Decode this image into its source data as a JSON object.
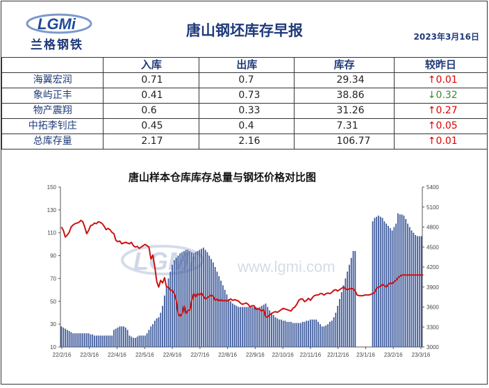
{
  "header": {
    "logo_text": "兰格钢铁",
    "logo_mark": "LGMi",
    "title": "唐山钢坯库存早报",
    "date": "2023年3月16日"
  },
  "table": {
    "columns": [
      "",
      "入库",
      "出库",
      "库存",
      "较昨日"
    ],
    "rows": [
      {
        "name": "海翼宏润",
        "in": "0.71",
        "out": "0.7",
        "stock": "29.34",
        "dir": "up",
        "arrow": "↑",
        "chg": "0.01"
      },
      {
        "name": "象屿正丰",
        "in": "0.41",
        "out": "0.73",
        "stock": "38.86",
        "dir": "down",
        "arrow": "↓",
        "chg": "0.32"
      },
      {
        "name": "物产震翔",
        "in": "0.6",
        "out": "0.33",
        "stock": "31.26",
        "dir": "up",
        "arrow": "↑",
        "chg": "0.27"
      },
      {
        "name": "中拓李钊庄",
        "in": "0.45",
        "out": "0.4",
        "stock": "7.31",
        "dir": "up",
        "arrow": "↑",
        "chg": "0.05"
      },
      {
        "name": "总库存量",
        "in": "2.17",
        "out": "2.16",
        "stock": "106.77",
        "dir": "up",
        "arrow": "↑",
        "chg": "0.01"
      }
    ]
  },
  "chart_data": {
    "type": "bar",
    "title": "唐山样本仓库库存总量与钢坯价格对比图",
    "watermark": "www.lgmi.com",
    "watermark_logo": "LGMi",
    "ylim_left": [
      10,
      150
    ],
    "yticks_left": [
      "10",
      "30",
      "50",
      "70",
      "90",
      "110",
      "130",
      "150"
    ],
    "ylim_right": [
      3000,
      5400
    ],
    "yticks_right": [
      "3000",
      "3300",
      "3600",
      "3900",
      "4200",
      "4500",
      "4800",
      "5100",
      "5400"
    ],
    "xticks": [
      "22/2/16",
      "22/3/16",
      "22/4/16",
      "22/5/16",
      "22/6/16",
      "22/7/16",
      "22/8/16",
      "22/9/16",
      "22/10/16",
      "22/11/16",
      "22/12/16",
      "23/1/16",
      "23/2/16",
      "23/3/16"
    ],
    "colors": {
      "bars": "#3d5a9c",
      "line": "#cc1111",
      "axis": "#555555"
    },
    "series": [
      {
        "kind": "bar",
        "values": [
          28,
          27,
          26,
          25,
          24,
          23,
          22,
          22,
          22,
          22,
          22,
          22,
          22,
          22,
          22,
          21,
          21,
          20,
          20,
          20,
          20,
          20,
          20,
          20,
          20,
          20,
          20,
          25,
          26,
          27,
          28,
          28,
          28,
          27,
          25,
          20,
          19,
          18,
          18,
          19,
          20,
          20,
          20,
          20,
          22,
          25,
          28,
          30,
          33,
          35,
          36,
          40,
          46,
          55,
          62,
          70,
          76,
          82,
          86,
          88,
          90,
          92,
          93,
          94,
          95,
          95,
          94,
          93,
          92,
          93,
          94,
          95,
          96,
          97,
          95,
          93,
          90,
          87,
          84,
          80,
          76,
          72,
          68,
          64,
          60,
          56,
          52,
          50,
          48,
          47,
          46,
          45,
          45,
          45,
          45,
          45,
          45,
          45,
          45,
          45,
          45,
          44,
          45,
          46,
          47,
          48,
          45,
          42,
          40,
          38,
          36,
          35,
          34,
          34,
          33,
          33,
          32,
          32,
          32,
          31,
          31,
          31,
          31,
          31,
          32,
          32,
          33,
          33,
          34,
          34,
          34,
          34,
          32,
          30,
          28,
          28,
          29,
          30,
          32,
          33,
          36,
          40,
          46,
          52,
          58,
          64,
          70,
          76,
          82,
          88,
          94,
          94,
          10,
          10,
          10,
          10,
          10,
          10,
          10,
          10,
          120,
          123,
          124,
          125,
          124,
          123,
          120,
          118,
          116,
          114,
          112,
          115,
          118,
          127,
          126,
          126,
          125,
          122,
          118,
          115,
          112,
          110,
          108,
          107,
          107,
          107
        ]
      },
      {
        "kind": "line",
        "values": [
          4800,
          4750,
          4650,
          4680,
          4720,
          4800,
          4830,
          4850,
          4860,
          4870,
          4900,
          4880,
          4800,
          4700,
          4750,
          4820,
          4830,
          4860,
          4850,
          4880,
          4870,
          4850,
          4810,
          4760,
          4780,
          4760,
          4720,
          4700,
          4600,
          4580,
          4590,
          4550,
          4560,
          4570,
          4560,
          4550,
          4570,
          4520,
          4500,
          4510,
          4480,
          4500,
          4520,
          4540,
          4520,
          4500,
          4320,
          4380,
          4200,
          3980,
          3900,
          4000,
          3960,
          4040,
          3900,
          3900,
          3850,
          3850,
          3800,
          3700,
          3500,
          3460,
          3500,
          3620,
          3500,
          3550,
          3550,
          3700,
          3800,
          3750,
          3800,
          3780,
          3810,
          3760,
          3720,
          3740,
          3760,
          3780,
          3760,
          3700,
          3720,
          3690,
          3710,
          3690,
          3700,
          3690,
          3700,
          3720,
          3700,
          3710,
          3700,
          3690,
          3660,
          3640,
          3650,
          3660,
          3640,
          3600,
          3620,
          3620,
          3560,
          3580,
          3560,
          3540,
          3560,
          3450,
          3450,
          3480,
          3500,
          3520,
          3530,
          3520,
          3540,
          3560,
          3580,
          3570,
          3560,
          3550,
          3540,
          3580,
          3600,
          3640,
          3700,
          3720,
          3720,
          3680,
          3700,
          3730,
          3700,
          3740,
          3770,
          3780,
          3780,
          3800,
          3800,
          3780,
          3800,
          3810,
          3800,
          3820,
          3850,
          3860,
          3840,
          3860,
          3880,
          3900,
          3870,
          3860,
          3870,
          3880,
          3870,
          3840,
          3780,
          3770,
          3770,
          3770,
          3780,
          3780,
          3780,
          3790,
          3800,
          3820,
          3880,
          3900,
          3910,
          3940,
          3920,
          3900,
          3940,
          3960,
          3950,
          3980,
          4000,
          4040,
          4060,
          4080,
          4080,
          4080,
          4080,
          4080,
          4080,
          4080,
          4080,
          4080,
          4080,
          4080,
          4080
        ]
      }
    ]
  }
}
